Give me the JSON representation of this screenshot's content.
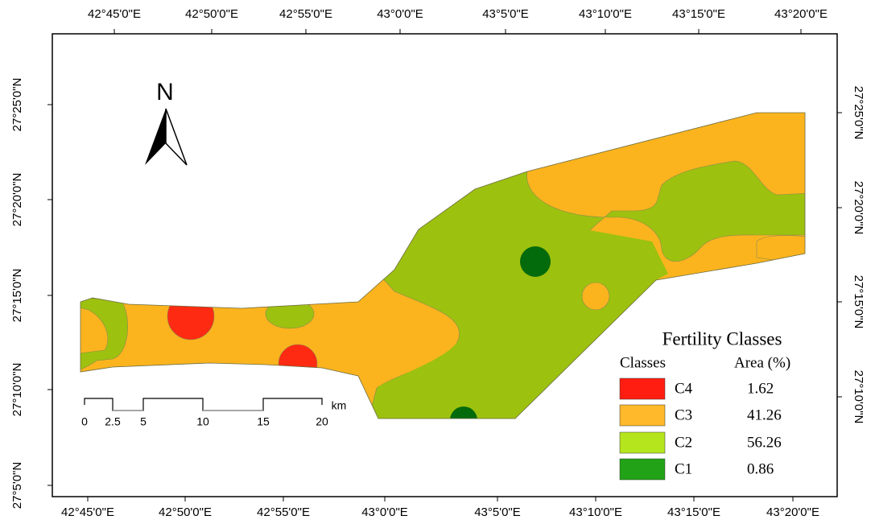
{
  "map": {
    "top_labels": [
      "42°45'0\"E",
      "42°50'0\"E",
      "42°55'0\"E",
      "43°0'0\"E",
      "43°5'0\"E",
      "43°10'0\"E",
      "43°15'0\"E",
      "43°20'0\"E"
    ],
    "bottom_labels": [
      "42°45'0\"E",
      "42°50'0\"E",
      "42°55'0\"E",
      "43°0'0\"E",
      "43°5'0\"E",
      "43°10'0\"E",
      "43°15'0\"E",
      "43°20'0\"E"
    ],
    "left_labels": [
      "27°25'0\"N",
      "27°20'0\"N",
      "27°15'0\"N",
      "27°10'0\"N",
      "27°5'0\"N"
    ],
    "right_labels": [
      "27°25'0\"N",
      "27°20'0\"N",
      "27°15'0\"N",
      "27°10'0\"N"
    ],
    "north_label": "N",
    "scale_bar": {
      "labels": [
        0,
        2.5,
        5,
        10,
        15,
        20
      ],
      "unit": "km"
    },
    "legend": {
      "title": "Fertility Classes",
      "headers": [
        "Classes",
        "Area (%)"
      ],
      "rows": [
        {
          "class": "C4",
          "area": 1.62,
          "color": "#ff1d12"
        },
        {
          "class": "C3",
          "area": 41.26,
          "color": "#ffb92a"
        },
        {
          "class": "C2",
          "area": 56.26,
          "color": "#b5e61d"
        },
        {
          "class": "C1",
          "area": 0.86,
          "color": "#22a317"
        }
      ]
    }
  }
}
